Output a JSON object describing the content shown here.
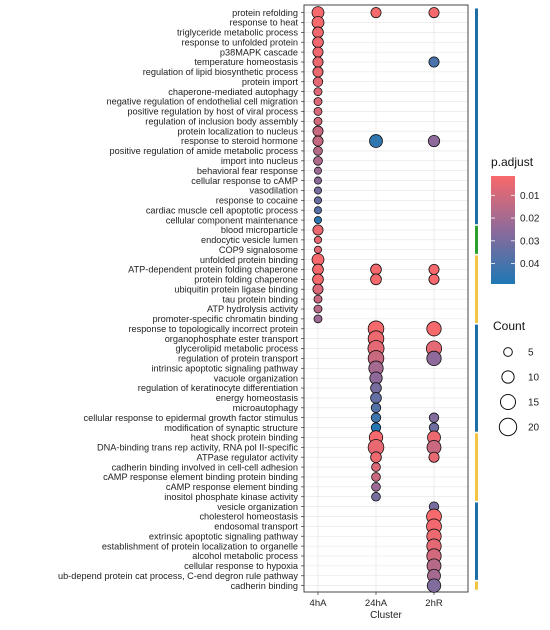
{
  "chart_data": {
    "type": "scatter",
    "subtype": "dot-plot",
    "xlabel": "Cluster",
    "ylabel": "",
    "clusters": [
      "4hA",
      "24hA",
      "2hR"
    ],
    "grid": true,
    "legend_position": "right",
    "terms": [
      "protein refolding",
      "response to heat",
      "triglyceride metabolic process",
      "response to unfolded protein",
      "p38MAPK cascade",
      "temperature homeostasis",
      "regulation of lipid biosynthetic process",
      "protein import",
      "chaperone-mediated autophagy",
      "negative regulation of endothelial cell migration",
      "positive regulation by host of viral process",
      "regulation of inclusion body assembly",
      "protein localization to nucleus",
      "response to steroid hormone",
      "positive regulation of amide metabolic process",
      "import into nucleus",
      "behavioral fear response",
      "cellular response to cAMP",
      "vasodilation",
      "response to cocaine",
      "cardiac muscle cell apoptotic process",
      "cellular component maintenance",
      "blood microparticle",
      "endocytic vesicle lumen",
      "COP9 signalosome",
      "unfolded protein binding",
      "ATP-dependent protein folding chaperone",
      "protein folding chaperone",
      "ubiquitin protein ligase binding",
      "tau protein binding",
      "ATP hydrolysis activity",
      "promoter-specific chromatin binding",
      "response to topologically incorrect protein",
      "organophosphate ester transport",
      "glycerolipid metabolic process",
      "regulation of protein transport",
      "intrinsic apoptotic signaling pathway",
      "vacuole organization",
      "regulation of keratinocyte differentiation",
      "energy homeostasis",
      "microautophagy",
      "cellular response to epidermal growth factor stimulus",
      "modification of synaptic structure",
      "heat shock protein binding",
      "DNA-binding trans rep activity, RNA pol II-specific",
      "ATPase regulator activity",
      "cadherin binding involved in cell-cell adhesion",
      "cAMP response element binding protein binding",
      "cAMP response element binding",
      "inositol phosphate kinase activity",
      "vesicle organization",
      "cholesterol homeostasis",
      "endosomal transport",
      "extrinsic apoptotic signaling pathway",
      "establishment of protein localization to organelle",
      "alcohol metabolic process",
      "cellular response to hypoxia",
      "ub-depend protein cat process, C-end degron rule pathway",
      "cadherin binding"
    ],
    "points": [
      {
        "term": 0,
        "cluster": "4hA",
        "count": 11,
        "p_adjust": 0.002
      },
      {
        "term": 0,
        "cluster": "24hA",
        "count": 8,
        "p_adjust": 0.002
      },
      {
        "term": 0,
        "cluster": "2hR",
        "count": 8,
        "p_adjust": 0.002
      },
      {
        "term": 1,
        "cluster": "4hA",
        "count": 11,
        "p_adjust": 0.002
      },
      {
        "term": 2,
        "cluster": "4hA",
        "count": 9,
        "p_adjust": 0.003
      },
      {
        "term": 3,
        "cluster": "4hA",
        "count": 9,
        "p_adjust": 0.003
      },
      {
        "term": 4,
        "cluster": "4hA",
        "count": 8,
        "p_adjust": 0.003
      },
      {
        "term": 5,
        "cluster": "4hA",
        "count": 8,
        "p_adjust": 0.004
      },
      {
        "term": 5,
        "cluster": "2hR",
        "count": 8,
        "p_adjust": 0.04
      },
      {
        "term": 6,
        "cluster": "4hA",
        "count": 8,
        "p_adjust": 0.004
      },
      {
        "term": 7,
        "cluster": "4hA",
        "count": 7,
        "p_adjust": 0.006
      },
      {
        "term": 8,
        "cluster": "4hA",
        "count": 5,
        "p_adjust": 0.007
      },
      {
        "term": 9,
        "cluster": "4hA",
        "count": 5,
        "p_adjust": 0.008
      },
      {
        "term": 10,
        "cluster": "4hA",
        "count": 5,
        "p_adjust": 0.009
      },
      {
        "term": 11,
        "cluster": "4hA",
        "count": 5,
        "p_adjust": 0.01
      },
      {
        "term": 12,
        "cluster": "4hA",
        "count": 8,
        "p_adjust": 0.012
      },
      {
        "term": 13,
        "cluster": "4hA",
        "count": 8,
        "p_adjust": 0.013
      },
      {
        "term": 13,
        "cluster": "24hA",
        "count": 13,
        "p_adjust": 0.045
      },
      {
        "term": 13,
        "cluster": "2hR",
        "count": 10,
        "p_adjust": 0.025
      },
      {
        "term": 14,
        "cluster": "4hA",
        "count": 6,
        "p_adjust": 0.016
      },
      {
        "term": 15,
        "cluster": "4hA",
        "count": 6,
        "p_adjust": 0.018
      },
      {
        "term": 16,
        "cluster": "4hA",
        "count": 4,
        "p_adjust": 0.022
      },
      {
        "term": 17,
        "cluster": "4hA",
        "count": 4,
        "p_adjust": 0.026
      },
      {
        "term": 18,
        "cluster": "4hA",
        "count": 4,
        "p_adjust": 0.03
      },
      {
        "term": 19,
        "cluster": "4hA",
        "count": 4,
        "p_adjust": 0.033
      },
      {
        "term": 20,
        "cluster": "4hA",
        "count": 4,
        "p_adjust": 0.037
      },
      {
        "term": 21,
        "cluster": "4hA",
        "count": 4,
        "p_adjust": 0.046
      },
      {
        "term": 22,
        "cluster": "4hA",
        "count": 8,
        "p_adjust": 0.004
      },
      {
        "term": 23,
        "cluster": "4hA",
        "count": 4,
        "p_adjust": 0.005
      },
      {
        "term": 24,
        "cluster": "4hA",
        "count": 4,
        "p_adjust": 0.006
      },
      {
        "term": 25,
        "cluster": "4hA",
        "count": 11,
        "p_adjust": 0.002
      },
      {
        "term": 26,
        "cluster": "4hA",
        "count": 9,
        "p_adjust": 0.002
      },
      {
        "term": 26,
        "cluster": "24hA",
        "count": 9,
        "p_adjust": 0.002
      },
      {
        "term": 26,
        "cluster": "2hR",
        "count": 8,
        "p_adjust": 0.002
      },
      {
        "term": 27,
        "cluster": "4hA",
        "count": 9,
        "p_adjust": 0.002
      },
      {
        "term": 27,
        "cluster": "24hA",
        "count": 9,
        "p_adjust": 0.002
      },
      {
        "term": 27,
        "cluster": "2hR",
        "count": 8,
        "p_adjust": 0.002
      },
      {
        "term": 28,
        "cluster": "4hA",
        "count": 8,
        "p_adjust": 0.008
      },
      {
        "term": 29,
        "cluster": "4hA",
        "count": 5,
        "p_adjust": 0.012
      },
      {
        "term": 30,
        "cluster": "4hA",
        "count": 5,
        "p_adjust": 0.016
      },
      {
        "term": 31,
        "cluster": "4hA",
        "count": 5,
        "p_adjust": 0.022
      },
      {
        "term": 32,
        "cluster": "24hA",
        "count": 19,
        "p_adjust": 0.002
      },
      {
        "term": 32,
        "cluster": "2hR",
        "count": 16,
        "p_adjust": 0.002
      },
      {
        "term": 33,
        "cluster": "24hA",
        "count": 19,
        "p_adjust": 0.004
      },
      {
        "term": 34,
        "cluster": "24hA",
        "count": 20,
        "p_adjust": 0.006
      },
      {
        "term": 34,
        "cluster": "2hR",
        "count": 18,
        "p_adjust": 0.006
      },
      {
        "term": 35,
        "cluster": "24hA",
        "count": 19,
        "p_adjust": 0.012
      },
      {
        "term": 35,
        "cluster": "2hR",
        "count": 16,
        "p_adjust": 0.025
      },
      {
        "term": 36,
        "cluster": "24hA",
        "count": 16,
        "p_adjust": 0.02
      },
      {
        "term": 37,
        "cluster": "24hA",
        "count": 12,
        "p_adjust": 0.025
      },
      {
        "term": 38,
        "cluster": "24hA",
        "count": 9,
        "p_adjust": 0.03
      },
      {
        "term": 39,
        "cluster": "24hA",
        "count": 9,
        "p_adjust": 0.034
      },
      {
        "term": 40,
        "cluster": "24hA",
        "count": 7,
        "p_adjust": 0.038
      },
      {
        "term": 41,
        "cluster": "24hA",
        "count": 7,
        "p_adjust": 0.042
      },
      {
        "term": 41,
        "cluster": "2hR",
        "count": 7,
        "p_adjust": 0.028
      },
      {
        "term": 42,
        "cluster": "24hA",
        "count": 7,
        "p_adjust": 0.048
      },
      {
        "term": 42,
        "cluster": "2hR",
        "count": 7,
        "p_adjust": 0.032
      },
      {
        "term": 43,
        "cluster": "24hA",
        "count": 14,
        "p_adjust": 0.002
      },
      {
        "term": 43,
        "cluster": "2hR",
        "count": 13,
        "p_adjust": 0.004
      },
      {
        "term": 44,
        "cluster": "24hA",
        "count": 19,
        "p_adjust": 0.005
      },
      {
        "term": 44,
        "cluster": "2hR",
        "count": 15,
        "p_adjust": 0.012
      },
      {
        "term": 45,
        "cluster": "24hA",
        "count": 9,
        "p_adjust": 0.004
      },
      {
        "term": 45,
        "cluster": "2hR",
        "count": 8,
        "p_adjust": 0.005
      },
      {
        "term": 46,
        "cluster": "24hA",
        "count": 6,
        "p_adjust": 0.008
      },
      {
        "term": 47,
        "cluster": "24hA",
        "count": 6,
        "p_adjust": 0.012
      },
      {
        "term": 48,
        "cluster": "24hA",
        "count": 6,
        "p_adjust": 0.022
      },
      {
        "term": 49,
        "cluster": "24hA",
        "count": 6,
        "p_adjust": 0.03
      },
      {
        "term": 50,
        "cluster": "2hR",
        "count": 7,
        "p_adjust": 0.03
      },
      {
        "term": 51,
        "cluster": "2hR",
        "count": 17,
        "p_adjust": 0.002
      },
      {
        "term": 52,
        "cluster": "2hR",
        "count": 17,
        "p_adjust": 0.003
      },
      {
        "term": 53,
        "cluster": "2hR",
        "count": 16,
        "p_adjust": 0.004
      },
      {
        "term": 54,
        "cluster": "2hR",
        "count": 16,
        "p_adjust": 0.006
      },
      {
        "term": 55,
        "cluster": "2hR",
        "count": 16,
        "p_adjust": 0.01
      },
      {
        "term": 56,
        "cluster": "2hR",
        "count": 15,
        "p_adjust": 0.016
      },
      {
        "term": 57,
        "cluster": "2hR",
        "count": 13,
        "p_adjust": 0.02
      },
      {
        "term": 58,
        "cluster": "2hR",
        "count": 14,
        "p_adjust": 0.028
      }
    ],
    "groups": [
      {
        "color": "#1c6ea4",
        "from": 0,
        "to": 21
      },
      {
        "color": "#2ca02c",
        "from": 22,
        "to": 24
      },
      {
        "color": "#f4c542",
        "from": 25,
        "to": 31
      },
      {
        "color": "#1c6ea4",
        "from": 32,
        "to": 42
      },
      {
        "color": "#f4c542",
        "from": 43,
        "to": 49
      },
      {
        "color": "#1c6ea4",
        "from": 50,
        "to": 57
      },
      {
        "color": "#f4c542",
        "from": 58,
        "to": 58
      }
    ],
    "color_legend": {
      "title": "p.adjust",
      "ticks": [
        0.01,
        0.02,
        0.03,
        0.04
      ],
      "tick_labels": [
        "0.01",
        "0.02",
        "0.03",
        "0.04"
      ],
      "range": [
        0.0015,
        0.049
      ],
      "low_color": "#f8696b",
      "mid_color": "#8d6a9a",
      "high_color": "#1f78b4"
    },
    "size_legend": {
      "title": "Count",
      "values": [
        5,
        10,
        15,
        20
      ],
      "labels": [
        "5",
        "10",
        "15",
        "20"
      ]
    }
  }
}
